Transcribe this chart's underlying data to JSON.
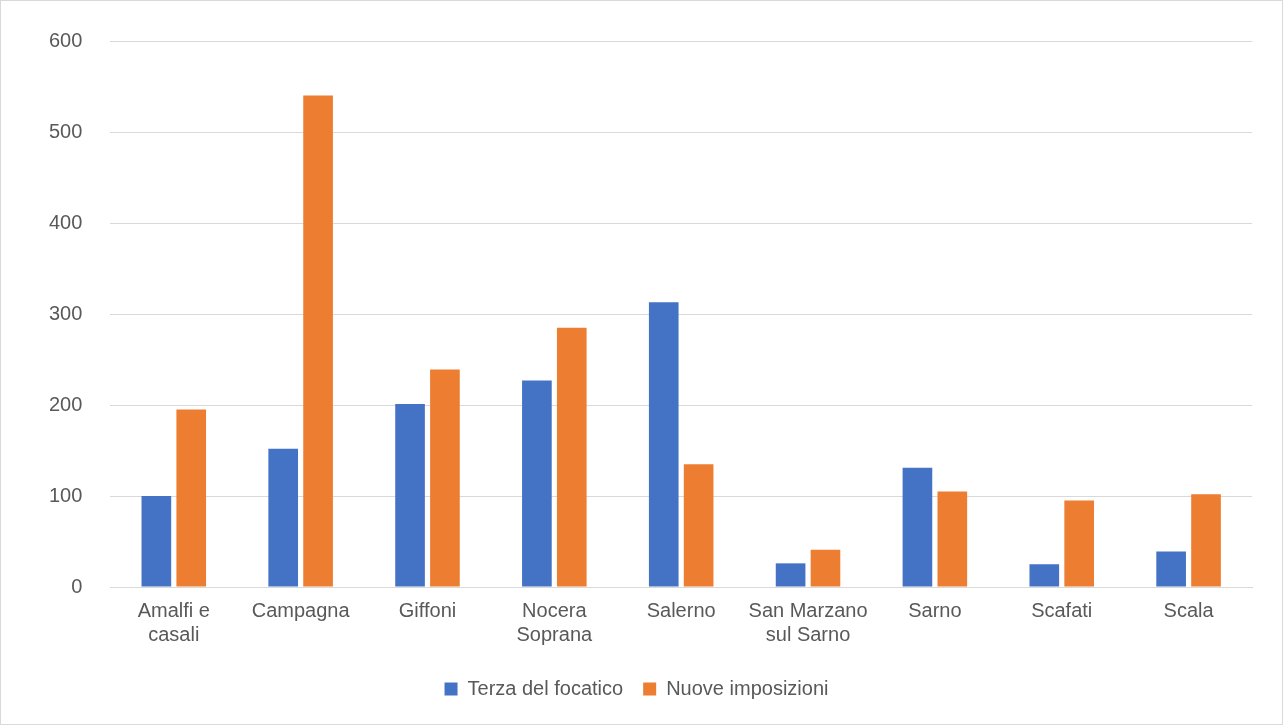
{
  "chart_data": {
    "type": "bar",
    "categories": [
      "Amalfi e casali",
      "Campagna",
      "Giffoni",
      "Nocera Soprana",
      "Salerno",
      "San Marzano sul Sarno",
      "Sarno",
      "Scafati",
      "Scala"
    ],
    "series": [
      {
        "name": "Terza del focatico",
        "color": "#4472c4",
        "values": [
          100,
          152,
          201,
          227,
          313,
          26,
          131,
          25,
          39
        ]
      },
      {
        "name": "Nuove imposizioni",
        "color": "#ed7d31",
        "values": [
          195,
          540,
          239,
          285,
          135,
          41,
          105,
          95,
          102
        ]
      }
    ],
    "ylim": [
      0,
      600
    ],
    "yticks": [
      0,
      100,
      200,
      300,
      400,
      500,
      600
    ],
    "grid": "y",
    "legend": "bottom"
  }
}
